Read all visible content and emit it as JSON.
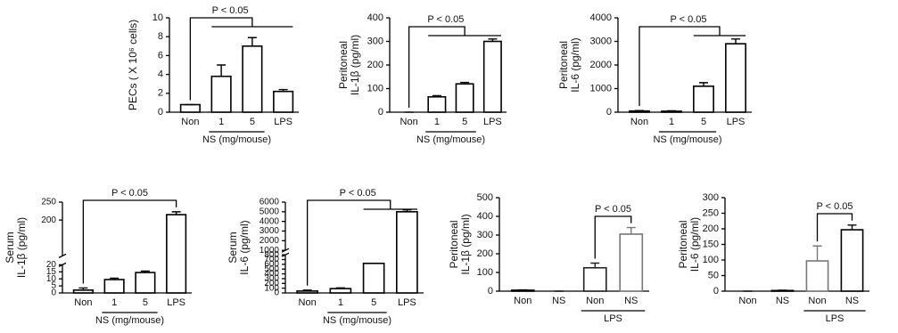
{
  "chart_data": [
    {
      "type": "bar",
      "ylabel": [
        "PECs ( X 10⁶ cells)"
      ],
      "categories": [
        "Non",
        "1",
        "5",
        "LPS"
      ],
      "values": [
        0.8,
        3.8,
        7.0,
        2.2
      ],
      "errors": [
        0,
        1.2,
        0.9,
        0.2
      ],
      "colors": [
        "#000",
        "#000",
        "#000",
        "#000"
      ],
      "ylim": [
        0,
        10
      ],
      "yticks": [
        0,
        2,
        4,
        6,
        8,
        10
      ],
      "group_label": "NS (mg/mouse)",
      "group": [
        1,
        2
      ],
      "annotation": "P < 0.05",
      "bracket": {
        "from": 0,
        "span": [
          1,
          3
        ]
      }
    },
    {
      "type": "bar",
      "ylabel": [
        "Peritoneal",
        "IL-1β (pg/ml)"
      ],
      "categories": [
        "Non",
        "1",
        "5",
        "LPS"
      ],
      "values": [
        0,
        65,
        120,
        300
      ],
      "errors": [
        0,
        5,
        6,
        10
      ],
      "colors": [
        "#000",
        "#000",
        "#000",
        "#000"
      ],
      "ylim": [
        0,
        400
      ],
      "yticks": [
        0,
        100,
        200,
        300,
        400
      ],
      "group_label": "NS (mg/mouse)",
      "group": [
        1,
        2
      ],
      "annotation": "P < 0.05",
      "bracket": {
        "from": 0,
        "span": [
          1,
          3
        ]
      }
    },
    {
      "type": "bar",
      "ylabel": [
        "Peritoneal",
        "IL-6 (pg/ml)"
      ],
      "categories": [
        "Non",
        "1",
        "5",
        "LPS"
      ],
      "values": [
        50,
        40,
        1100,
        2900
      ],
      "errors": [
        20,
        20,
        150,
        200
      ],
      "colors": [
        "#000",
        "#000",
        "#000",
        "#000"
      ],
      "ylim": [
        0,
        4000
      ],
      "yticks": [
        0,
        1000,
        2000,
        3000,
        4000
      ],
      "group_label": "NS (mg/mouse)",
      "group": [
        1,
        2
      ],
      "annotation": "P < 0.05",
      "bracket": {
        "from": 0,
        "span": [
          2,
          3
        ]
      }
    },
    {
      "type": "bar",
      "ylabel": [
        "Serum",
        "IL-1β (pg/ml)"
      ],
      "categories": [
        "Non",
        "1",
        "5",
        "LPS"
      ],
      "values": [
        2,
        9.5,
        14.5,
        215
      ],
      "errors": [
        1.5,
        1,
        1,
        8
      ],
      "colors": [
        "#000",
        "#000",
        "#000",
        "#000"
      ],
      "ylim": [
        0,
        250
      ],
      "ybreak": [
        20,
        100
      ],
      "yticks": [
        0,
        5,
        10,
        15,
        20,
        200,
        250
      ],
      "group_label": "NS (mg/mouse)",
      "group": [
        1,
        2
      ],
      "annotation": "P < 0.05",
      "bracket": {
        "from": 0,
        "to": 3
      }
    },
    {
      "type": "bar",
      "ylabel": [
        "Serum",
        "IL-6 (pg/ml)"
      ],
      "categories": [
        "Non",
        "1",
        "5",
        "LPS"
      ],
      "values": [
        40,
        90,
        620,
        5000
      ],
      "errors": [
        20,
        15,
        0,
        200
      ],
      "colors": [
        "#000",
        "#000",
        "#000",
        "#000"
      ],
      "ylim": [
        0,
        6000
      ],
      "ybreak": [
        800,
        1000
      ],
      "yticks": [
        0,
        100,
        200,
        300,
        400,
        500,
        600,
        700,
        800,
        1000,
        2000,
        3000,
        4000,
        5000,
        6000
      ],
      "group_label": "NS (mg/mouse)",
      "group": [
        1,
        2
      ],
      "annotation": "P < 0.05",
      "bracket": {
        "from": 0,
        "span": [
          2,
          3
        ]
      }
    },
    {
      "type": "bar",
      "ylabel": [
        "Peritoneal",
        "IL-1β (pg/ml)"
      ],
      "categories": [
        "Non",
        "NS",
        "Non",
        "NS"
      ],
      "values": [
        5,
        0,
        125,
        305
      ],
      "errors": [
        2,
        0,
        25,
        35
      ],
      "colors": [
        "#000",
        "#000",
        "#222",
        "#777"
      ],
      "ylim": [
        0,
        500
      ],
      "yticks": [
        0,
        100,
        200,
        300,
        400,
        500
      ],
      "group_label": "LPS",
      "group": [
        2,
        3
      ],
      "annotation": "P < 0.05",
      "bracket": {
        "from": 2,
        "to": 3
      }
    },
    {
      "type": "bar",
      "ylabel": [
        "Peritoneal",
        "IL-6 (pg/ml)"
      ],
      "categories": [
        "Non",
        "NS",
        "Non",
        "NS"
      ],
      "values": [
        0,
        2,
        97,
        197
      ],
      "errors": [
        0,
        1,
        48,
        15
      ],
      "colors": [
        "#000",
        "#000",
        "#777",
        "#000"
      ],
      "ylim": [
        0,
        300
      ],
      "yticks": [
        0,
        50,
        100,
        150,
        200,
        250,
        300
      ],
      "group_label": "LPS",
      "group": [
        2,
        3
      ],
      "annotation": "P < 0.05",
      "bracket": {
        "from": 2,
        "to": 3
      }
    }
  ]
}
